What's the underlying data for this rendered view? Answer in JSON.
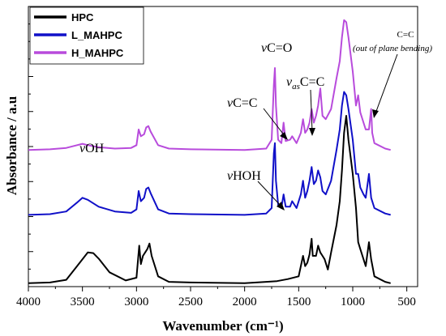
{
  "chart_data": {
    "type": "line",
    "xlabel": "Wavenumber (cm⁻¹)",
    "ylabel": "Absorbance / a.u",
    "xlim": [
      4000,
      400
    ],
    "x_reversed": true,
    "x_ticks": [
      4000,
      3500,
      3000,
      2500,
      2000,
      1500,
      1000,
      500
    ],
    "y_ticks_shown": false,
    "grid": false,
    "legend_position": "top-left",
    "colors": {
      "HPC": "#000000",
      "L_MAHPC": "#1010c8",
      "H_MAHPC": "#b84bdc"
    },
    "series": [
      {
        "name": "HPC",
        "color": "#000000",
        "points": [
          [
            4000,
            0.0
          ],
          [
            3800,
            0.01
          ],
          [
            3650,
            0.05
          ],
          [
            3550,
            0.25
          ],
          [
            3450,
            0.45
          ],
          [
            3400,
            0.44
          ],
          [
            3350,
            0.36
          ],
          [
            3250,
            0.16
          ],
          [
            3100,
            0.04
          ],
          [
            3000,
            0.08
          ],
          [
            2975,
            0.55
          ],
          [
            2960,
            0.28
          ],
          [
            2940,
            0.4
          ],
          [
            2920,
            0.45
          ],
          [
            2900,
            0.5
          ],
          [
            2880,
            0.58
          ],
          [
            2860,
            0.4
          ],
          [
            2800,
            0.1
          ],
          [
            2700,
            0.02
          ],
          [
            2500,
            0.01
          ],
          [
            2000,
            0.0
          ],
          [
            1800,
            0.02
          ],
          [
            1700,
            0.03
          ],
          [
            1600,
            0.06
          ],
          [
            1500,
            0.1
          ],
          [
            1460,
            0.4
          ],
          [
            1440,
            0.25
          ],
          [
            1420,
            0.3
          ],
          [
            1400,
            0.42
          ],
          [
            1380,
            0.65
          ],
          [
            1370,
            0.4
          ],
          [
            1340,
            0.4
          ],
          [
            1320,
            0.55
          ],
          [
            1300,
            0.45
          ],
          [
            1280,
            0.4
          ],
          [
            1260,
            0.35
          ],
          [
            1230,
            0.2
          ],
          [
            1200,
            0.45
          ],
          [
            1150,
            0.85
          ],
          [
            1120,
            1.2
          ],
          [
            1100,
            1.65
          ],
          [
            1080,
            2.2
          ],
          [
            1060,
            2.45
          ],
          [
            1040,
            2.1
          ],
          [
            1000,
            1.6
          ],
          [
            970,
            1.1
          ],
          [
            950,
            0.6
          ],
          [
            930,
            0.5
          ],
          [
            900,
            0.35
          ],
          [
            880,
            0.25
          ],
          [
            850,
            0.6
          ],
          [
            830,
            0.35
          ],
          [
            800,
            0.1
          ],
          [
            700,
            0.02
          ],
          [
            650,
            0.0
          ]
        ]
      },
      {
        "name": "L_MAHPC",
        "color": "#1010c8",
        "points": [
          [
            4000,
            1.0
          ],
          [
            3800,
            1.01
          ],
          [
            3650,
            1.05
          ],
          [
            3550,
            1.18
          ],
          [
            3500,
            1.25
          ],
          [
            3450,
            1.22
          ],
          [
            3350,
            1.12
          ],
          [
            3200,
            1.05
          ],
          [
            3050,
            1.03
          ],
          [
            3000,
            1.08
          ],
          [
            2980,
            1.35
          ],
          [
            2960,
            1.2
          ],
          [
            2930,
            1.25
          ],
          [
            2910,
            1.38
          ],
          [
            2890,
            1.4
          ],
          [
            2870,
            1.32
          ],
          [
            2800,
            1.08
          ],
          [
            2700,
            1.02
          ],
          [
            2500,
            1.01
          ],
          [
            2000,
            1.0
          ],
          [
            1800,
            1.02
          ],
          [
            1750,
            1.1
          ],
          [
            1730,
            1.9
          ],
          [
            1720,
            2.05
          ],
          [
            1710,
            1.5
          ],
          [
            1690,
            1.15
          ],
          [
            1660,
            1.1
          ],
          [
            1640,
            1.3
          ],
          [
            1620,
            1.12
          ],
          [
            1580,
            1.12
          ],
          [
            1560,
            1.2
          ],
          [
            1520,
            1.1
          ],
          [
            1480,
            1.3
          ],
          [
            1460,
            1.5
          ],
          [
            1440,
            1.25
          ],
          [
            1420,
            1.35
          ],
          [
            1400,
            1.5
          ],
          [
            1380,
            1.7
          ],
          [
            1360,
            1.45
          ],
          [
            1340,
            1.5
          ],
          [
            1320,
            1.65
          ],
          [
            1300,
            1.55
          ],
          [
            1280,
            1.35
          ],
          [
            1250,
            1.3
          ],
          [
            1200,
            1.5
          ],
          [
            1150,
            1.95
          ],
          [
            1120,
            2.25
          ],
          [
            1100,
            2.6
          ],
          [
            1080,
            2.8
          ],
          [
            1060,
            2.75
          ],
          [
            1040,
            2.55
          ],
          [
            1000,
            2.1
          ],
          [
            970,
            1.6
          ],
          [
            950,
            1.6
          ],
          [
            930,
            1.4
          ],
          [
            900,
            1.3
          ],
          [
            880,
            1.25
          ],
          [
            850,
            1.6
          ],
          [
            830,
            1.25
          ],
          [
            800,
            1.1
          ],
          [
            700,
            1.02
          ],
          [
            650,
            1.0
          ]
        ]
      },
      {
        "name": "H_MAHPC",
        "color": "#b84bdc",
        "points": [
          [
            4000,
            1.95
          ],
          [
            3800,
            1.96
          ],
          [
            3650,
            1.98
          ],
          [
            3550,
            2.02
          ],
          [
            3500,
            2.04
          ],
          [
            3450,
            2.02
          ],
          [
            3350,
            1.99
          ],
          [
            3200,
            1.97
          ],
          [
            3050,
            1.98
          ],
          [
            3000,
            2.02
          ],
          [
            2980,
            2.25
          ],
          [
            2960,
            2.15
          ],
          [
            2930,
            2.18
          ],
          [
            2910,
            2.28
          ],
          [
            2890,
            2.3
          ],
          [
            2870,
            2.22
          ],
          [
            2800,
            2.02
          ],
          [
            2700,
            1.97
          ],
          [
            2500,
            1.96
          ],
          [
            2000,
            1.95
          ],
          [
            1800,
            1.97
          ],
          [
            1750,
            2.1
          ],
          [
            1730,
            2.9
          ],
          [
            1720,
            3.15
          ],
          [
            1710,
            2.6
          ],
          [
            1690,
            2.1
          ],
          [
            1660,
            2.05
          ],
          [
            1640,
            2.35
          ],
          [
            1620,
            2.08
          ],
          [
            1580,
            2.1
          ],
          [
            1560,
            2.15
          ],
          [
            1520,
            2.05
          ],
          [
            1480,
            2.2
          ],
          [
            1460,
            2.4
          ],
          [
            1440,
            2.2
          ],
          [
            1420,
            2.25
          ],
          [
            1400,
            2.35
          ],
          [
            1380,
            2.55
          ],
          [
            1360,
            2.35
          ],
          [
            1340,
            2.45
          ],
          [
            1320,
            2.6
          ],
          [
            1300,
            2.85
          ],
          [
            1280,
            2.45
          ],
          [
            1250,
            2.4
          ],
          [
            1200,
            2.55
          ],
          [
            1150,
            3.0
          ],
          [
            1120,
            3.25
          ],
          [
            1100,
            3.6
          ],
          [
            1080,
            3.85
          ],
          [
            1060,
            3.82
          ],
          [
            1040,
            3.6
          ],
          [
            1000,
            3.1
          ],
          [
            970,
            2.6
          ],
          [
            950,
            2.75
          ],
          [
            930,
            2.5
          ],
          [
            900,
            2.35
          ],
          [
            880,
            2.25
          ],
          [
            850,
            2.25
          ],
          [
            830,
            2.55
          ],
          [
            820,
            2.2
          ],
          [
            800,
            2.05
          ],
          [
            700,
            1.97
          ],
          [
            650,
            1.95
          ]
        ]
      }
    ],
    "annotations": [
      {
        "id": "voh",
        "prefix": "v",
        "sub": "",
        "text": "OH"
      },
      {
        "id": "vco",
        "prefix": "v",
        "sub": "",
        "text": "C=O"
      },
      {
        "id": "vascc",
        "prefix": "v",
        "sub": "as",
        "text": "C=C"
      },
      {
        "id": "vcc",
        "prefix": "v",
        "sub": "",
        "text": "C=C"
      },
      {
        "id": "vhoh",
        "prefix": "v",
        "sub": "",
        "text": "HOH"
      },
      {
        "id": "ccb",
        "prefix": "",
        "sub": "",
        "text": "C=C",
        "note": "(out of plane bending)"
      }
    ]
  }
}
